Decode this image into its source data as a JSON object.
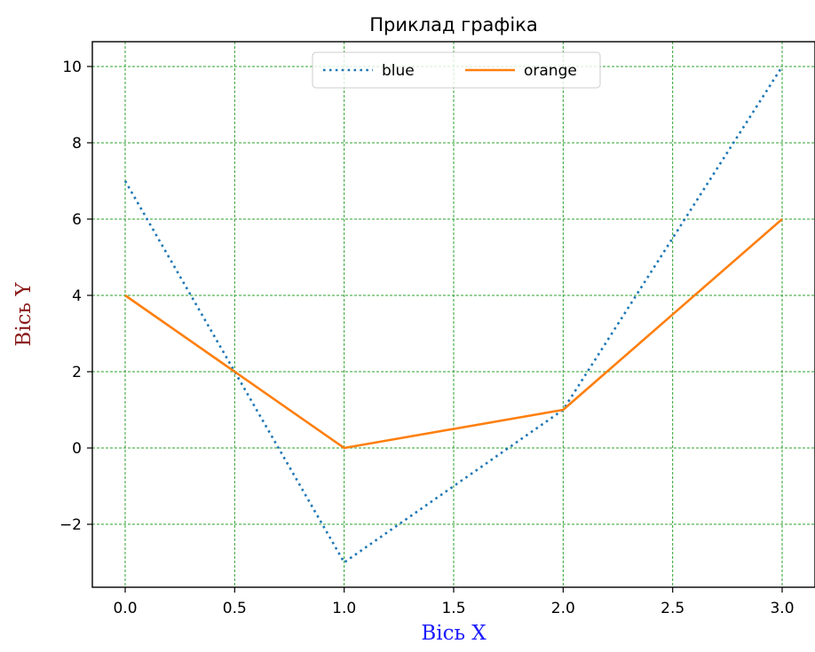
{
  "chart_data": {
    "type": "line",
    "title": "Приклад графіка",
    "xlabel": "Вісь X",
    "ylabel": "Вісь Y",
    "xlabel_color": "#1a1aff",
    "ylabel_color": "#8b1a1a",
    "xlim": [
      -0.15,
      3.15
    ],
    "ylim": [
      -3.65,
      10.65
    ],
    "xticks": [
      0.0,
      0.5,
      1.0,
      1.5,
      2.0,
      2.5,
      3.0
    ],
    "xtick_labels": [
      "0.0",
      "0.5",
      "1.0",
      "1.5",
      "2.0",
      "2.5",
      "3.0"
    ],
    "yticks": [
      -2,
      0,
      2,
      4,
      6,
      8,
      10
    ],
    "ytick_labels": [
      "−2",
      "0",
      "2",
      "4",
      "6",
      "8",
      "10"
    ],
    "grid": true,
    "grid_color": "#2ca02c",
    "legend_position": "upper-center",
    "legend_columns": 2,
    "series": [
      {
        "name": "blue",
        "x": [
          0,
          1,
          2,
          3
        ],
        "y": [
          7,
          -3,
          1,
          10
        ],
        "color": "#1f77b4",
        "linestyle": "dotted"
      },
      {
        "name": "orange",
        "x": [
          0,
          1,
          2,
          3
        ],
        "y": [
          4,
          0,
          1,
          6
        ],
        "color": "#ff7f0e",
        "linestyle": "solid"
      }
    ]
  }
}
